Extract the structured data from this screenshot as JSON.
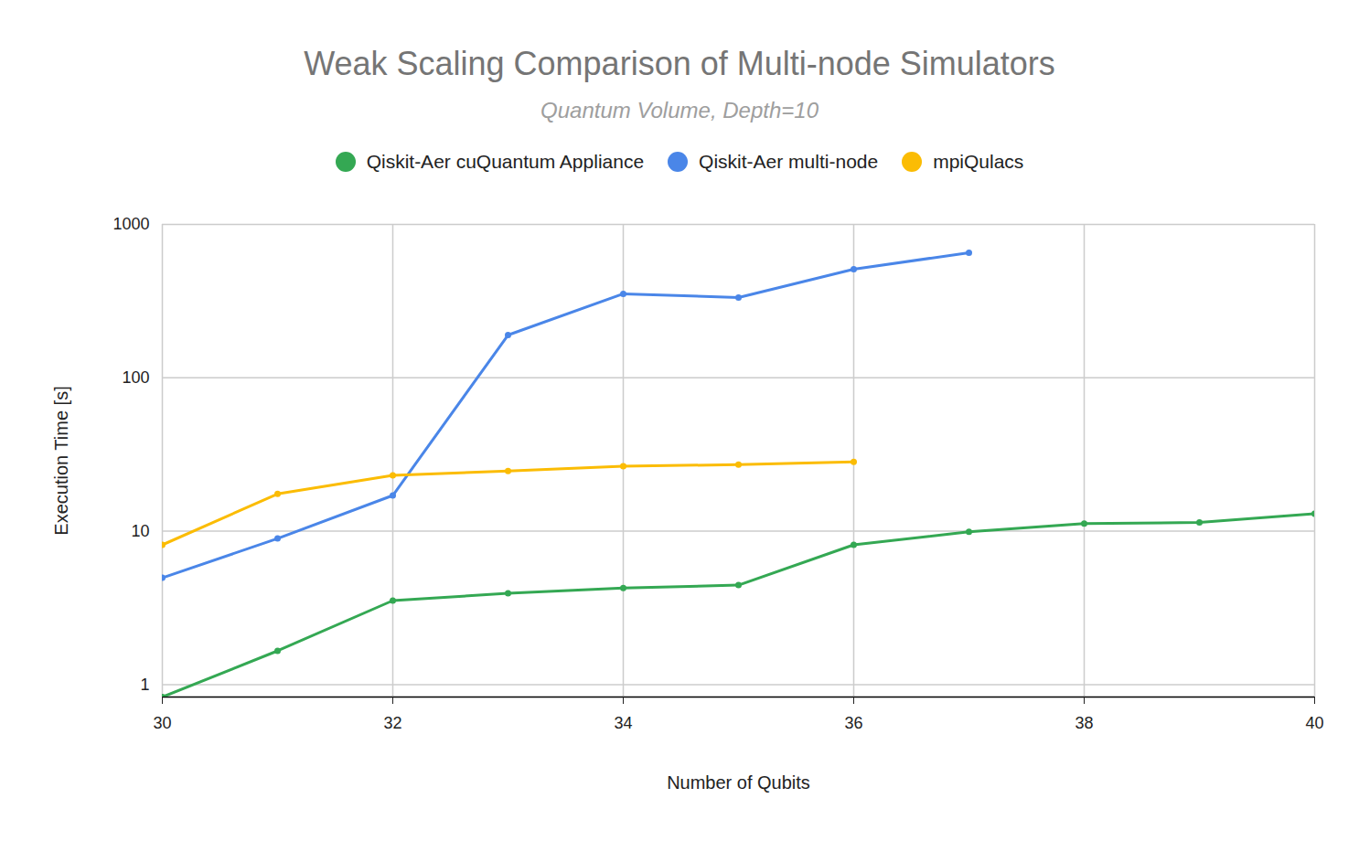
{
  "chart_data": {
    "type": "line",
    "title": "Weak Scaling Comparison of Multi-node Simulators",
    "subtitle": "Quantum Volume, Depth=10",
    "x_label": "Number of Qubits",
    "y_label": "Execution Time [s]",
    "x": [
      30,
      31,
      32,
      33,
      34,
      35,
      36,
      37,
      38,
      39,
      40
    ],
    "series": [
      {
        "name": "Qiskit-Aer cuQuantum Appliance",
        "color": "#34a853",
        "marker": "circle",
        "values": [
          0.83,
          1.66,
          3.53,
          3.94,
          4.27,
          4.45,
          8.15,
          9.9,
          11.2,
          11.4,
          13.0
        ]
      },
      {
        "name": "Qiskit-Aer multi-node",
        "color": "#4a86e8",
        "marker": "circle",
        "values": [
          4.97,
          8.96,
          17.1,
          190,
          353,
          334,
          511,
          654,
          null,
          null,
          null
        ]
      },
      {
        "name": "mpiQulacs",
        "color": "#fbbc04",
        "marker": "circle",
        "values": [
          8.15,
          17.5,
          23.1,
          24.7,
          26.5,
          27.2,
          28.3,
          null,
          null,
          null,
          null
        ]
      }
    ],
    "xlim": [
      30,
      40
    ],
    "xticks": [
      30,
      32,
      34,
      36,
      38,
      40
    ],
    "ylim": [
      0.83,
      1000
    ],
    "yticks": [
      1,
      10,
      100,
      1000
    ],
    "log": "y",
    "grid": true,
    "legend": "top"
  }
}
